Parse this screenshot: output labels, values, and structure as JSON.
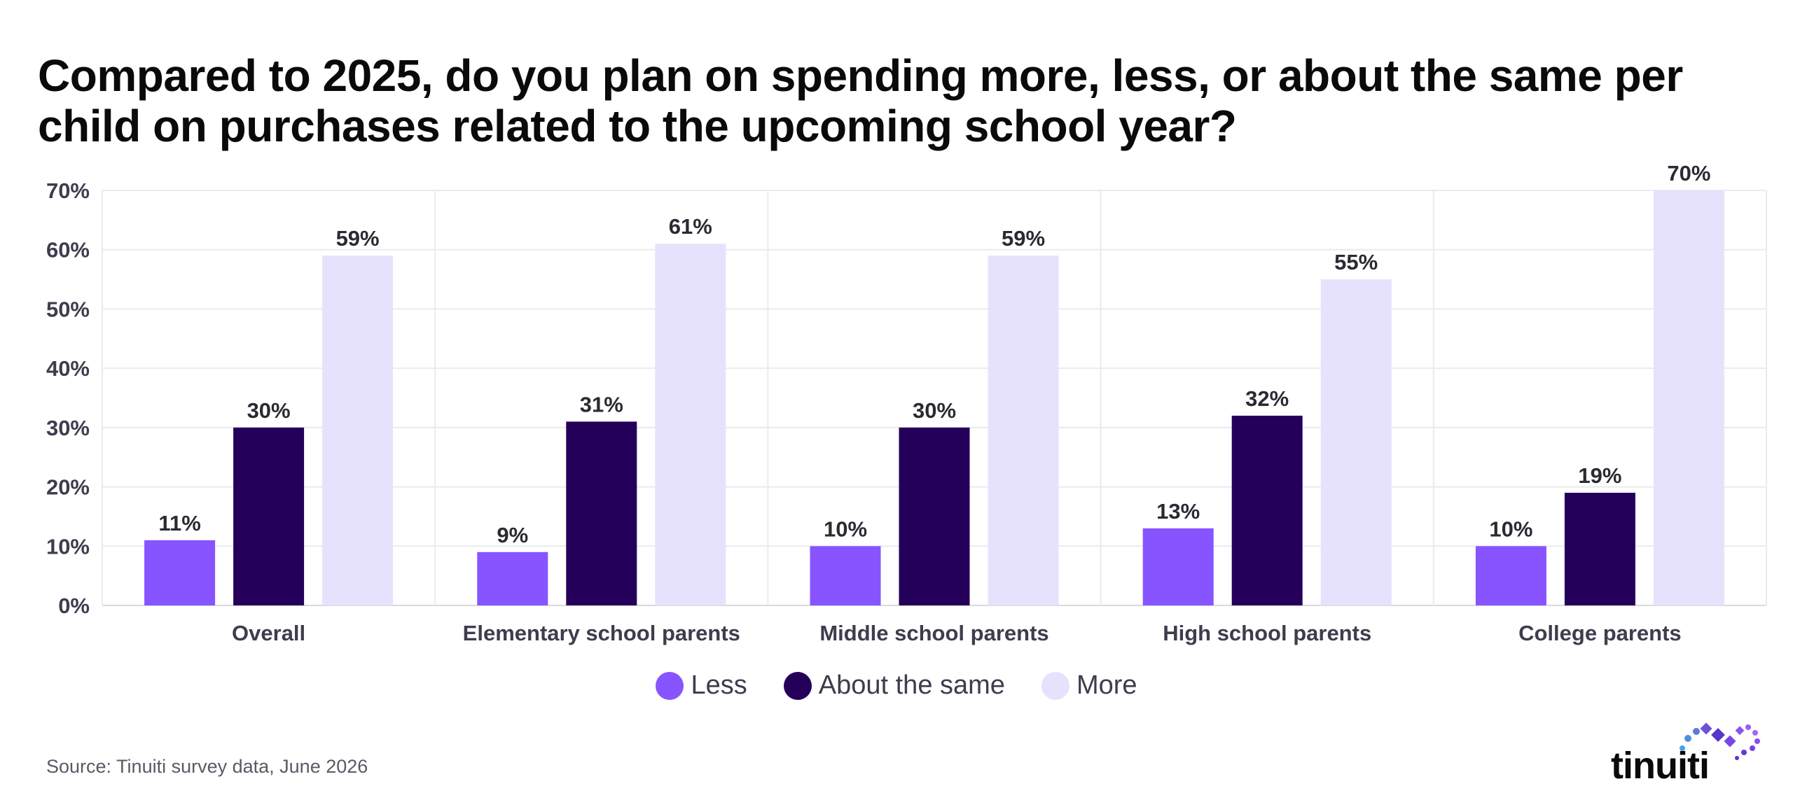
{
  "title": "Compared to 2025, do you plan on spending more, less, or about the same per child on purchases related to the upcoming school year?",
  "source": "Source: Tinuiti survey data, June 2026",
  "logo_text": "tinuiti",
  "chart_data": {
    "type": "bar",
    "categories": [
      "Overall",
      "Elementary school parents",
      "Middle school parents",
      "High school parents",
      "College parents"
    ],
    "series": [
      {
        "name": "Less",
        "color": "#8754ff",
        "values": [
          11,
          9,
          10,
          13,
          10
        ]
      },
      {
        "name": "About the same",
        "color": "#25005a",
        "values": [
          30,
          31,
          30,
          32,
          19
        ]
      },
      {
        "name": "More",
        "color": "#e6e2fd",
        "values": [
          59,
          61,
          59,
          55,
          70
        ]
      }
    ],
    "ylim": [
      0,
      70
    ],
    "yticks": [
      "0%",
      "10%",
      "20%",
      "30%",
      "40%",
      "50%",
      "60%",
      "70%"
    ],
    "data_labels": [
      [
        "11%",
        "30%",
        "59%"
      ],
      [
        "9%",
        "31%",
        "61%"
      ],
      [
        "10%",
        "30%",
        "59%"
      ],
      [
        "13%",
        "32%",
        "55%"
      ],
      [
        "10%",
        "19%",
        "70%"
      ]
    ],
    "grid": true,
    "legend_position": "bottom-center"
  }
}
